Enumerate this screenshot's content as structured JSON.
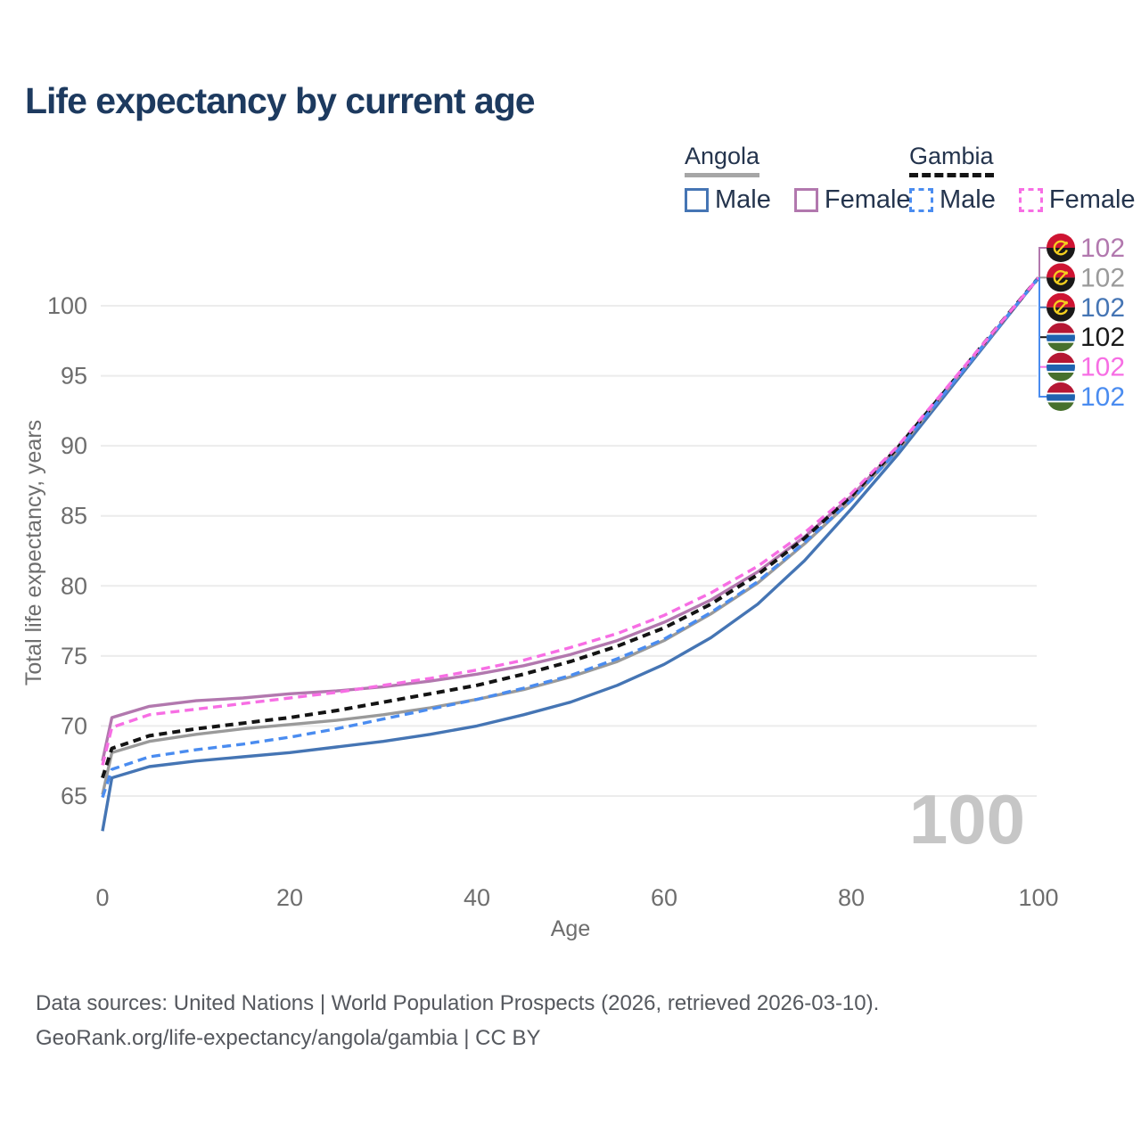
{
  "page": {
    "title": "Life expectancy by current age"
  },
  "legend": {
    "groups": [
      {
        "country": "Angola",
        "style": "solid",
        "underline_color": "#a6a6a6",
        "items": [
          {
            "label": "Male",
            "color": "#4575b4",
            "dashed": false
          },
          {
            "label": "Female",
            "color": "#b278ae",
            "dashed": false
          }
        ]
      },
      {
        "country": "Gambia",
        "style": "dashed",
        "underline_color": "#141414",
        "items": [
          {
            "label": "Male",
            "color": "#4a8cf0",
            "dashed": true
          },
          {
            "label": "Female",
            "color": "#f76ee4",
            "dashed": true
          }
        ]
      }
    ]
  },
  "chart_data": {
    "type": "line",
    "title": "Life expectancy by current age",
    "xlabel": "Age",
    "ylabel": "Total life expectancy, years",
    "x_ticks": [
      0,
      20,
      40,
      60,
      80,
      100
    ],
    "y_ticks": [
      65,
      70,
      75,
      80,
      85,
      90,
      95,
      100
    ],
    "xlim": [
      0,
      100
    ],
    "ylim": [
      62,
      103
    ],
    "grid": "horizontal",
    "legend_position": "top-right",
    "watermark": "100",
    "x": [
      0,
      1,
      5,
      10,
      15,
      20,
      25,
      30,
      35,
      40,
      45,
      50,
      55,
      60,
      65,
      70,
      75,
      80,
      85,
      90,
      95,
      100
    ],
    "series": [
      {
        "id": "angola-male",
        "name": "Angola Male",
        "country": "Angola",
        "sex": "Male",
        "flag": "angola",
        "color": "#4575b4",
        "dashed": false,
        "label_row": 2,
        "end_label": "102",
        "values": [
          62.5,
          66.3,
          67.1,
          67.5,
          67.8,
          68.1,
          68.5,
          68.9,
          69.4,
          70.0,
          70.8,
          71.7,
          72.9,
          74.4,
          76.3,
          78.7,
          81.8,
          85.5,
          89.4,
          93.6,
          97.8,
          102
        ]
      },
      {
        "id": "angola",
        "name": "Angola",
        "country": "Angola",
        "sex": "Both",
        "flag": "angola",
        "color": "#9a9a9a",
        "dashed": false,
        "label_row": 1,
        "end_label": "102",
        "values": [
          65.1,
          68.1,
          68.9,
          69.4,
          69.8,
          70.1,
          70.4,
          70.8,
          71.3,
          71.9,
          72.6,
          73.5,
          74.6,
          76.1,
          78.0,
          80.2,
          83.0,
          86.1,
          89.7,
          93.8,
          97.9,
          102
        ]
      },
      {
        "id": "angola-female",
        "name": "Angola Female",
        "country": "Angola",
        "sex": "Female",
        "flag": "angola",
        "color": "#b278ae",
        "dashed": false,
        "label_row": 0,
        "end_label": "102",
        "values": [
          67.5,
          70.6,
          71.4,
          71.8,
          72.0,
          72.3,
          72.5,
          72.8,
          73.2,
          73.7,
          74.3,
          75.1,
          76.1,
          77.4,
          79.0,
          81.0,
          83.5,
          86.4,
          89.9,
          93.9,
          97.9,
          102
        ]
      },
      {
        "id": "gambia",
        "name": "Gambia",
        "country": "Gambia",
        "sex": "Both",
        "flag": "gambia",
        "color": "#141414",
        "dashed": true,
        "label_row": 3,
        "end_label": "102",
        "values": [
          66.3,
          68.4,
          69.3,
          69.8,
          70.2,
          70.6,
          71.1,
          71.7,
          72.3,
          72.9,
          73.7,
          74.6,
          75.7,
          77.0,
          78.7,
          80.8,
          83.4,
          86.4,
          89.9,
          93.9,
          98.0,
          102
        ]
      },
      {
        "id": "gambia-male",
        "name": "Gambia Male",
        "country": "Gambia",
        "sex": "Male",
        "flag": "gambia",
        "color": "#4a8cf0",
        "dashed": true,
        "label_row": 5,
        "end_label": "102",
        "values": [
          64.9,
          66.9,
          67.8,
          68.3,
          68.7,
          69.2,
          69.8,
          70.5,
          71.2,
          71.9,
          72.7,
          73.6,
          74.8,
          76.2,
          78.1,
          80.3,
          83.1,
          86.1,
          89.7,
          93.8,
          97.9,
          102
        ]
      },
      {
        "id": "gambia-female",
        "name": "Gambia Female",
        "country": "Gambia",
        "sex": "Female",
        "flag": "gambia",
        "color": "#f76ee4",
        "dashed": true,
        "label_row": 4,
        "end_label": "102",
        "values": [
          67.2,
          69.9,
          70.8,
          71.2,
          71.6,
          72.0,
          72.4,
          72.9,
          73.4,
          74.0,
          74.7,
          75.6,
          76.6,
          77.9,
          79.5,
          81.4,
          83.8,
          86.6,
          90.0,
          94.0,
          98.0,
          102
        ]
      }
    ]
  },
  "footer": {
    "line1": "Data sources: United Nations | World Population Prospects (2026, retrieved 2026-03-10).",
    "line2": "GeoRank.org/life-expectancy/angola/gambia | CC BY"
  }
}
